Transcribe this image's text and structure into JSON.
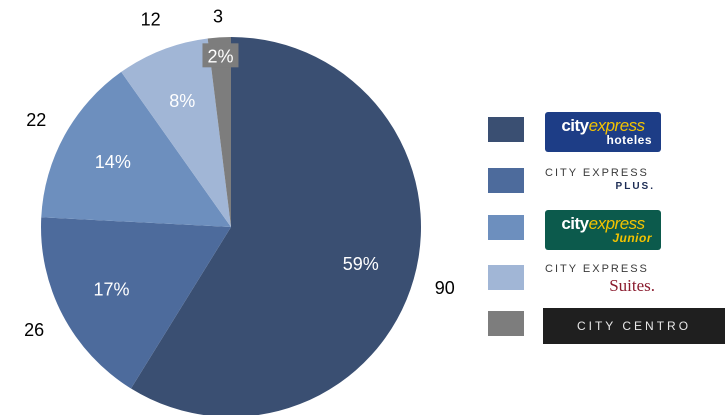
{
  "chart_data": {
    "type": "pie",
    "title": "",
    "slices": [
      {
        "count": 90,
        "percent_label": "59%",
        "color": "#3a4f72"
      },
      {
        "count": 26,
        "percent_label": "17%",
        "color": "#4d6b9c"
      },
      {
        "count": 22,
        "percent_label": "14%",
        "color": "#6d8fbe"
      },
      {
        "count": 12,
        "percent_label": "8%",
        "color": "#a1b6d6"
      },
      {
        "count": 3,
        "percent_label": "2%",
        "color": "#7d7d7d"
      }
    ],
    "count_labels": [
      "90",
      "26",
      "22",
      "12",
      "3"
    ],
    "percent_labels": [
      "59%",
      "17%",
      "14%",
      "8%",
      "2%"
    ],
    "legend_placement": "right"
  },
  "legend": [
    {
      "color": "#3a4f72",
      "logo_lines": [
        "city",
        "express",
        "hoteles"
      ],
      "logo_bg": "#1d3d86",
      "logo_sub_color": "#ffffff"
    },
    {
      "color": "#4d6b9c",
      "logo_lines": [
        "CITY EXPRESS",
        "PLUS."
      ]
    },
    {
      "color": "#6d8fbe",
      "logo_lines": [
        "city",
        "express",
        "Junior"
      ],
      "logo_bg": "#0c5a4c",
      "logo_sub_color": "#f4c300"
    },
    {
      "color": "#a1b6d6",
      "logo_lines": [
        "CITY EXPRESS",
        "Suites."
      ]
    },
    {
      "color": "#7d7d7d",
      "logo_lines": [
        "CITY CENTRO"
      ]
    }
  ]
}
